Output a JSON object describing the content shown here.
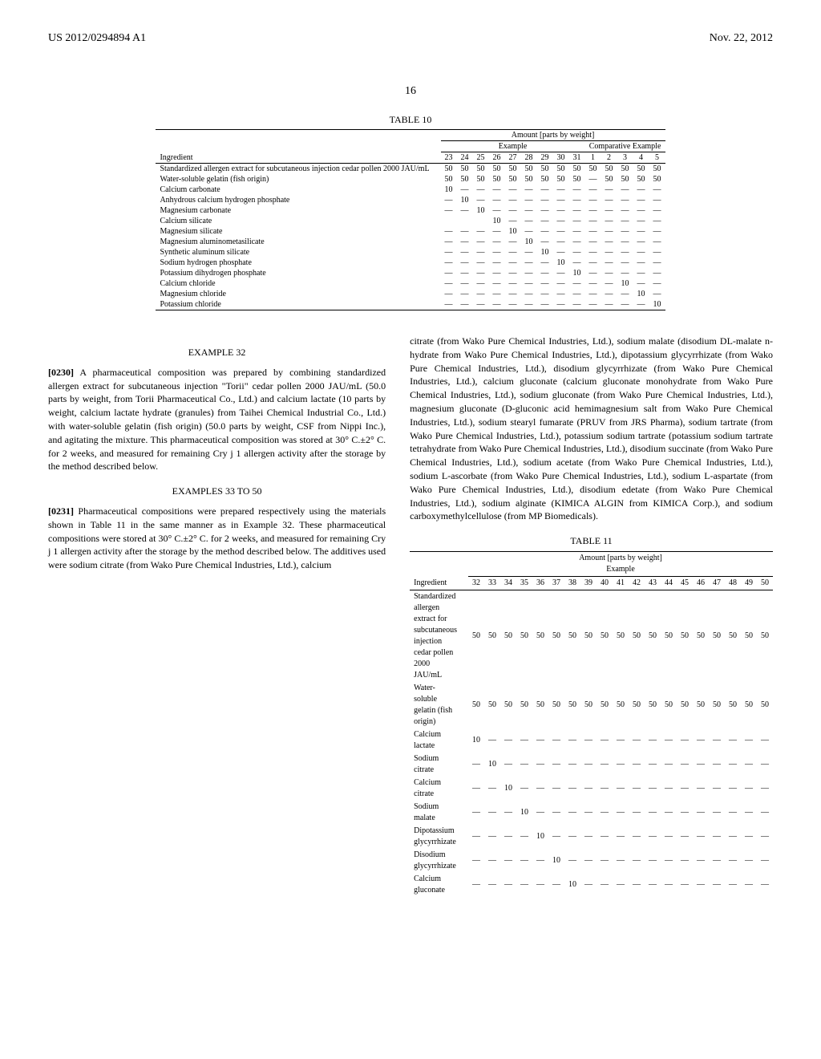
{
  "header": {
    "left": "US 2012/0294894 A1",
    "right": "Nov. 22, 2012"
  },
  "page_number": "16",
  "table10": {
    "title": "TABLE 10",
    "amount_header": "Amount [parts by weight]",
    "example_header": "Example",
    "comp_header": "Comparative Example",
    "ingredient_label": "Ingredient",
    "example_cols": [
      "23",
      "24",
      "25",
      "26",
      "27",
      "28",
      "29",
      "30",
      "31"
    ],
    "comp_cols": [
      "1",
      "2",
      "3",
      "4",
      "5"
    ],
    "rows": [
      {
        "name": "Standardized allergen extract for subcutaneous injection cedar pollen 2000 JAU/mL",
        "vals": [
          "50",
          "50",
          "50",
          "50",
          "50",
          "50",
          "50",
          "50",
          "50",
          "50",
          "50",
          "50",
          "50",
          "50"
        ]
      },
      {
        "name": "Water-soluble gelatin (fish origin)",
        "vals": [
          "50",
          "50",
          "50",
          "50",
          "50",
          "50",
          "50",
          "50",
          "50",
          "—",
          "50",
          "50",
          "50",
          "50"
        ]
      },
      {
        "name": "Calcium carbonate",
        "vals": [
          "10",
          "—",
          "—",
          "—",
          "—",
          "—",
          "—",
          "—",
          "—",
          "—",
          "—",
          "—",
          "—",
          "—"
        ]
      },
      {
        "name": "Anhydrous calcium hydrogen phosphate",
        "vals": [
          "—",
          "10",
          "—",
          "—",
          "—",
          "—",
          "—",
          "—",
          "—",
          "—",
          "—",
          "—",
          "—",
          "—"
        ]
      },
      {
        "name": "Magnesium carbonate",
        "vals": [
          "—",
          "—",
          "10",
          "—",
          "—",
          "—",
          "—",
          "—",
          "—",
          "—",
          "—",
          "—",
          "—",
          "—"
        ]
      },
      {
        "name": "Calcium silicate",
        "vals": [
          "",
          "",
          "",
          "10",
          "—",
          "—",
          "—",
          "—",
          "—",
          "—",
          "—",
          "—",
          "—",
          "—"
        ]
      },
      {
        "name": "Magnesium silicate",
        "vals": [
          "—",
          "—",
          "—",
          "—",
          "10",
          "—",
          "—",
          "—",
          "—",
          "—",
          "—",
          "—",
          "—",
          "—"
        ]
      },
      {
        "name": "Magnesium aluminometasilicate",
        "vals": [
          "—",
          "—",
          "—",
          "—",
          "—",
          "10",
          "—",
          "—",
          "—",
          "—",
          "—",
          "—",
          "—",
          "—"
        ]
      },
      {
        "name": "Synthetic aluminum silicate",
        "vals": [
          "—",
          "—",
          "—",
          "—",
          "—",
          "—",
          "10",
          "—",
          "—",
          "—",
          "—",
          "—",
          "—",
          "—"
        ]
      },
      {
        "name": "Sodium hydrogen phosphate",
        "vals": [
          "—",
          "—",
          "—",
          "—",
          "—",
          "—",
          "—",
          "10",
          "—",
          "—",
          "—",
          "—",
          "—",
          "—"
        ]
      },
      {
        "name": "Potassium dihydrogen phosphate",
        "vals": [
          "—",
          "—",
          "—",
          "—",
          "—",
          "—",
          "—",
          "—",
          "10",
          "—",
          "—",
          "—",
          "—",
          "—"
        ]
      },
      {
        "name": "Calcium chloride",
        "vals": [
          "—",
          "—",
          "—",
          "—",
          "—",
          "—",
          "—",
          "—",
          "—",
          "—",
          "—",
          "10",
          "—",
          "—"
        ]
      },
      {
        "name": "Magnesium chloride",
        "vals": [
          "—",
          "—",
          "—",
          "—",
          "—",
          "—",
          "—",
          "—",
          "—",
          "—",
          "—",
          "—",
          "10",
          "—"
        ]
      },
      {
        "name": "Potassium chloride",
        "vals": [
          "—",
          "—",
          "—",
          "—",
          "—",
          "—",
          "—",
          "—",
          "—",
          "—",
          "—",
          "—",
          "—",
          "10"
        ]
      }
    ]
  },
  "example32": {
    "heading": "EXAMPLE 32",
    "para_num": "[0230]",
    "text": "A pharmaceutical composition was prepared by combining standardized allergen extract for subcutaneous injection \"Torii\" cedar pollen 2000 JAU/mL (50.0 parts by weight, from Torii Pharmaceutical Co., Ltd.) and calcium lactate (10 parts by weight, calcium lactate hydrate (granules) from Taihei Chemical Industrial Co., Ltd.) with water-soluble gelatin (fish origin) (50.0 parts by weight, CSF from Nippi Inc.), and agitating the mixture. This pharmaceutical composition was stored at 30° C.±2° C. for 2 weeks, and measured for remaining Cry j 1 allergen activity after the storage by the method described below."
  },
  "example33": {
    "heading": "EXAMPLES 33 TO 50",
    "para_num": "[0231]",
    "text_left": "Pharmaceutical compositions were prepared respectively using the materials shown in Table 11 in the same manner as in Example 32. These pharmaceutical compositions were stored at 30° C.±2° C. for 2 weeks, and measured for remaining Cry j 1 allergen activity after the storage by the method described below. The additives used were sodium citrate (from Wako Pure Chemical Industries, Ltd.), calcium",
    "text_right": "citrate (from Wako Pure Chemical Industries, Ltd.), sodium malate (disodium DL-malate n-hydrate from Wako Pure Chemical Industries, Ltd.), dipotassium glycyrrhizate (from Wako Pure Chemical Industries, Ltd.), disodium glycyrrhizate (from Wako Pure Chemical Industries, Ltd.), calcium gluconate (calcium gluconate monohydrate from Wako Pure Chemical Industries, Ltd.), sodium gluconate (from Wako Pure Chemical Industries, Ltd.), magnesium gluconate (D-gluconic acid hemimagnesium salt from Wako Pure Chemical Industries, Ltd.), sodium stearyl fumarate (PRUV from JRS Pharma), sodium tartrate (from Wako Pure Chemical Industries, Ltd.), potassium sodium tartrate (potassium sodium tartrate tetrahydrate from Wako Pure Chemical Industries, Ltd.), disodium succinate (from Wako Pure Chemical Industries, Ltd.), sodium acetate (from Wako Pure Chemical Industries, Ltd.), sodium L-ascorbate (from Wako Pure Chemical Industries, Ltd.), sodium L-aspartate (from Wako Pure Chemical Industries, Ltd.), disodium edetate (from Wako Pure Chemical Industries, Ltd.), sodium alginate (KIMICA ALGIN from KIMICA Corp.), and sodium carboxymethylcellulose (from MP Biomedicals)."
  },
  "table11": {
    "title": "TABLE 11",
    "amount_header": "Amount [parts by weight]",
    "example_header": "Example",
    "ingredient_label": "Ingredient",
    "cols": [
      "32",
      "33",
      "34",
      "35",
      "36",
      "37",
      "38",
      "39",
      "40",
      "41",
      "42",
      "43",
      "44",
      "45",
      "46",
      "47",
      "48",
      "49",
      "50"
    ],
    "rows": [
      {
        "name": "Standardized allergen extract for subcutaneous injection cedar pollen 2000 JAU/mL",
        "vals": [
          "50",
          "50",
          "50",
          "50",
          "50",
          "50",
          "50",
          "50",
          "50",
          "50",
          "50",
          "50",
          "50",
          "50",
          "50",
          "50",
          "50",
          "50",
          "50"
        ]
      },
      {
        "name": "Water-soluble gelatin (fish origin)",
        "vals": [
          "50",
          "50",
          "50",
          "50",
          "50",
          "50",
          "50",
          "50",
          "50",
          "50",
          "50",
          "50",
          "50",
          "50",
          "50",
          "50",
          "50",
          "50",
          "50"
        ]
      },
      {
        "name": "Calcium lactate",
        "vals": [
          "10",
          "—",
          "—",
          "—",
          "—",
          "—",
          "—",
          "—",
          "—",
          "—",
          "—",
          "—",
          "—",
          "—",
          "—",
          "—",
          "—",
          "—",
          "—"
        ]
      },
      {
        "name": "Sodium citrate",
        "vals": [
          "—",
          "10",
          "—",
          "—",
          "—",
          "—",
          "—",
          "—",
          "—",
          "—",
          "—",
          "—",
          "—",
          "—",
          "—",
          "—",
          "—",
          "—",
          "—"
        ]
      },
      {
        "name": "Calcium citrate",
        "vals": [
          "—",
          "—",
          "10",
          "—",
          "—",
          "—",
          "—",
          "—",
          "—",
          "—",
          "—",
          "—",
          "—",
          "—",
          "—",
          "—",
          "—",
          "—",
          "—"
        ]
      },
      {
        "name": "Sodium malate",
        "vals": [
          "—",
          "—",
          "—",
          "10",
          "—",
          "—",
          "—",
          "—",
          "—",
          "—",
          "—",
          "—",
          "—",
          "—",
          "—",
          "—",
          "—",
          "—",
          "—"
        ]
      },
      {
        "name": "Dipotassium glycyrrhizate",
        "vals": [
          "—",
          "—",
          "—",
          "—",
          "10",
          "—",
          "—",
          "—",
          "—",
          "—",
          "—",
          "—",
          "—",
          "—",
          "—",
          "—",
          "—",
          "—",
          "—"
        ]
      },
      {
        "name": "Disodium glycyrrhizate",
        "vals": [
          "—",
          "—",
          "—",
          "—",
          "—",
          "10",
          "—",
          "—",
          "—",
          "—",
          "—",
          "—",
          "—",
          "—",
          "—",
          "—",
          "—",
          "—",
          "—"
        ]
      },
      {
        "name": "Calcium gluconate",
        "vals": [
          "—",
          "—",
          "—",
          "—",
          "—",
          "—",
          "10",
          "—",
          "—",
          "—",
          "—",
          "—",
          "—",
          "—",
          "—",
          "—",
          "—",
          "—",
          "—"
        ]
      }
    ]
  }
}
